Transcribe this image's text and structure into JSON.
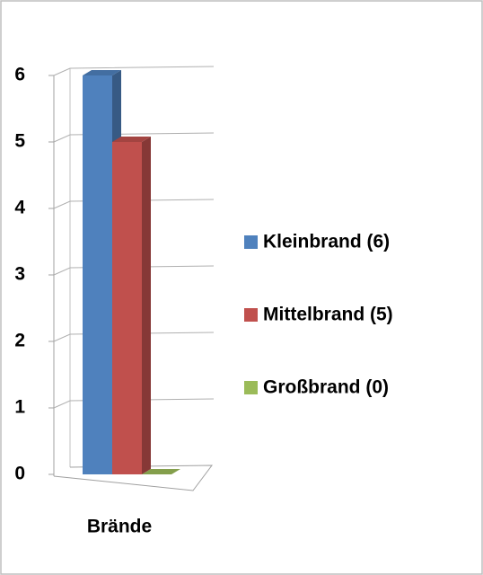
{
  "chart_data": {
    "type": "bar",
    "categories": [
      "Brände"
    ],
    "series": [
      {
        "name": "Kleinbrand (6)",
        "color": "#4f81bd",
        "values": [
          6
        ]
      },
      {
        "name": "Mittelbrand (5)",
        "color": "#c0504d",
        "values": [
          5
        ]
      },
      {
        "name": "Großbrand (0)",
        "color": "#9bbb59",
        "values": [
          0
        ]
      }
    ],
    "ylim": [
      0,
      6
    ],
    "yticks": [
      0,
      1,
      2,
      3,
      4,
      5,
      6
    ],
    "grid": true,
    "legend": "right"
  }
}
